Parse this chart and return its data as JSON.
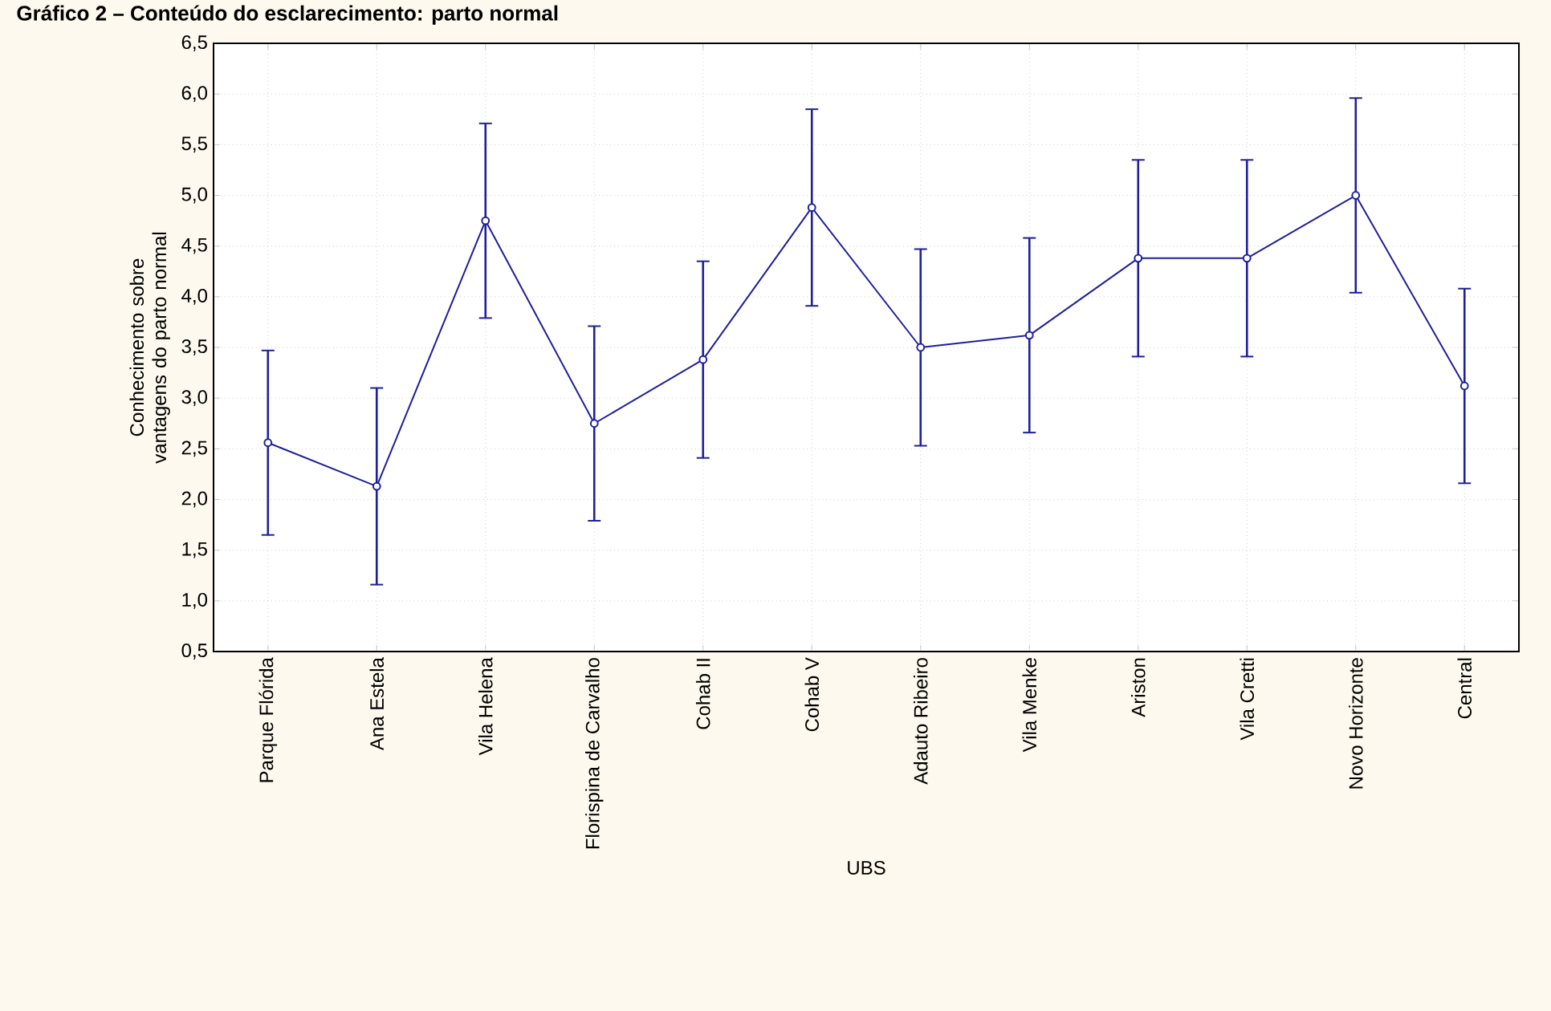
{
  "chart_data": {
    "type": "line",
    "title": "Gráfico 2 – Conteúdo do esclarecimento: parto normal",
    "xlabel": "UBS",
    "ylabel": "Conhecimento sobre vantagens do parto normal",
    "categories": [
      "Parque Flórida",
      "Ana Estela",
      "Vila Helena",
      "Florispina de Carvalho",
      "Cohab II",
      "Cohab V",
      "Adauto Ribeiro",
      "Vila Menke",
      "Ariston",
      "Vila Cretti",
      "Novo Horizonte",
      "Central"
    ],
    "series": [
      {
        "color": "#1f1f9c",
        "values": [
          2.56,
          2.13,
          4.75,
          2.75,
          3.38,
          4.88,
          3.5,
          3.62,
          4.38,
          4.38,
          5.0,
          3.12
        ],
        "errors": [
          0.91,
          0.97,
          0.96,
          0.96,
          0.97,
          0.97,
          0.97,
          0.96,
          0.97,
          0.97,
          0.96,
          0.96
        ]
      }
    ],
    "ylim": [
      0.5,
      6.5
    ],
    "yticks": [
      {
        "value": 0.5,
        "label": "0,5"
      },
      {
        "value": 1.0,
        "label": "1,0"
      },
      {
        "value": 1.5,
        "label": "1,5"
      },
      {
        "value": 2.0,
        "label": "2,0"
      },
      {
        "value": 2.5,
        "label": "2,5"
      },
      {
        "value": 3.0,
        "label": "3,0"
      },
      {
        "value": 3.5,
        "label": "3,5"
      },
      {
        "value": 4.0,
        "label": "4,0"
      },
      {
        "value": 4.5,
        "label": "4,5"
      },
      {
        "value": 5.0,
        "label": "5,0"
      },
      {
        "value": 5.5,
        "label": "5,5"
      },
      {
        "value": 6.0,
        "label": "6,0"
      },
      {
        "value": 6.5,
        "label": "6,5"
      }
    ],
    "grid": true,
    "marker": "circle",
    "line_style": "solid"
  }
}
